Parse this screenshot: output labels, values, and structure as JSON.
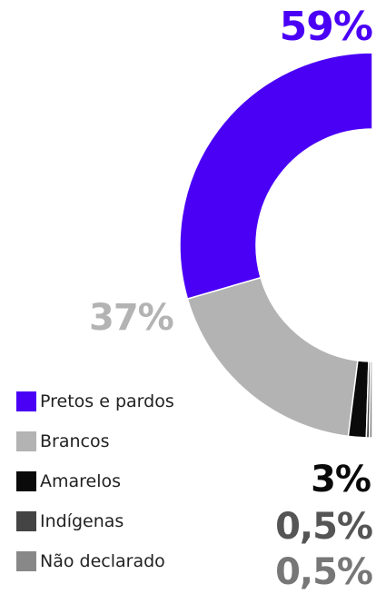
{
  "chart_data": {
    "type": "pie",
    "variant": "donut",
    "categories": [
      "Pretos e pardos",
      "Brancos",
      "Amarelos",
      "Indígenas",
      "Não declarado"
    ],
    "values": [
      59,
      37,
      3,
      0.5,
      0.5
    ],
    "colors": [
      "#4a00f5",
      "#b3b3b3",
      "#0a0a0a",
      "#444444",
      "#888888"
    ],
    "data_labels": [
      "59%",
      "37%",
      "3%",
      "0,5%",
      "0,5%"
    ],
    "label_colors": [
      "#4a00f5",
      "#b3b3b3",
      "#0a0a0a",
      "#555555",
      "#777777"
    ],
    "legend_placement": "bottom-left"
  }
}
